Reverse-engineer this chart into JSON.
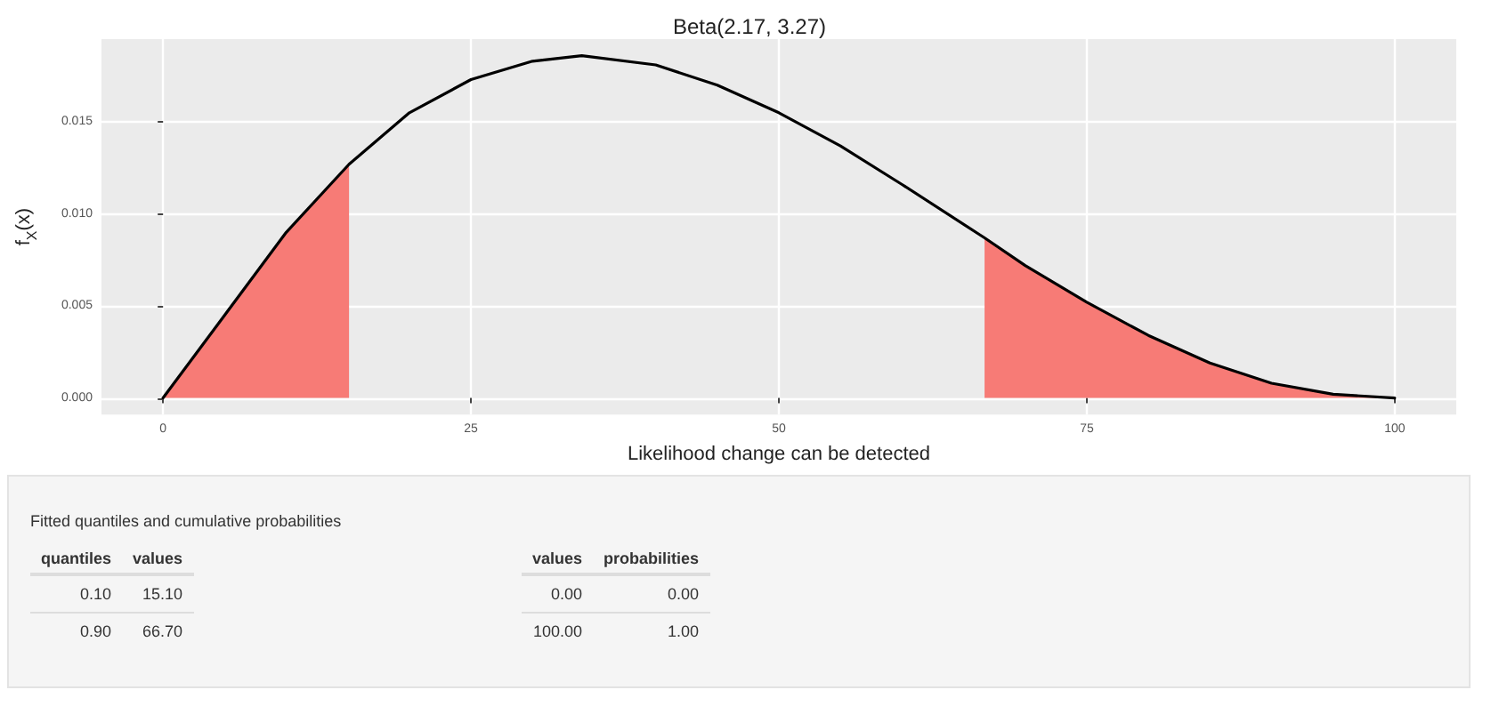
{
  "chart_data": {
    "type": "line",
    "title": "Beta(2.17, 3.27)",
    "xlabel": "Likelihood change can be detected",
    "ylabel": "f$_{X}$(x)",
    "xlim": [
      -5,
      105
    ],
    "xticks": [
      0,
      25,
      50,
      75,
      100
    ],
    "ylim": [
      -0.0009,
      0.0195
    ],
    "yticks": [
      {
        "value": 0,
        "label": "0.000"
      },
      {
        "value": 0.005,
        "label": "0.005"
      },
      {
        "value": 0.01,
        "label": "0.010"
      },
      {
        "value": 0.015,
        "label": "0.015"
      }
    ],
    "grid": true,
    "marker": "none",
    "line_style": "solid",
    "series": [
      {
        "type": "area",
        "color": "#f77b76",
        "x": [
          0,
          5,
          10,
          15.1
        ],
        "values": [
          0,
          0.0045,
          0.009,
          0.0127
        ]
      },
      {
        "type": "area",
        "color": "#f77b76",
        "x": [
          66.7,
          70,
          75,
          80,
          85,
          90,
          95,
          100
        ],
        "values": [
          0.0087,
          0.0072,
          0.0052,
          0.0034,
          0.0019,
          0.0008,
          0.0002,
          0
        ]
      },
      {
        "color": "#000000",
        "x": [
          0,
          5,
          10,
          15.1,
          20,
          25,
          30,
          34,
          40,
          45,
          50,
          55,
          60,
          66.7,
          70,
          75,
          80,
          85,
          90,
          95,
          100
        ],
        "values": [
          0,
          0.0045,
          0.009,
          0.0127,
          0.0155,
          0.0173,
          0.0183,
          0.0186,
          0.0181,
          0.017,
          0.0155,
          0.0137,
          0.0116,
          0.0087,
          0.0072,
          0.0052,
          0.0034,
          0.0019,
          0.0008,
          0.0002,
          0
        ]
      }
    ],
    "annotations": [
      "Fitted quantiles and cumulative probabilities",
      "quantiles",
      "values",
      "0.10",
      "15.10",
      "0.90",
      "66.70",
      "values",
      "probabilities",
      "0.00",
      "0.00",
      "100.00",
      "1.00"
    ]
  }
}
